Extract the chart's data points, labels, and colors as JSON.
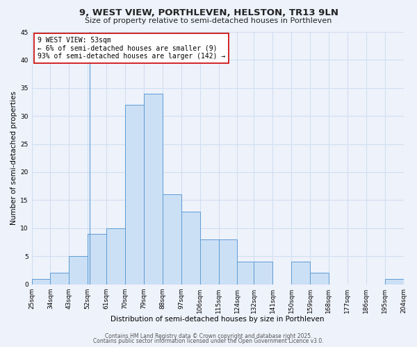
{
  "title": "9, WEST VIEW, PORTHLEVEN, HELSTON, TR13 9LN",
  "subtitle": "Size of property relative to semi-detached houses in Porthleven",
  "xlabel": "Distribution of semi-detached houses by size in Porthleven",
  "ylabel": "Number of semi-detached properties",
  "bin_labels": [
    "25sqm",
    "34sqm",
    "43sqm",
    "52sqm",
    "61sqm",
    "70sqm",
    "79sqm",
    "88sqm",
    "97sqm",
    "106sqm",
    "115sqm",
    "124sqm",
    "132sqm",
    "141sqm",
    "150sqm",
    "159sqm",
    "168sqm",
    "177sqm",
    "186sqm",
    "195sqm",
    "204sqm"
  ],
  "bin_edges": [
    25,
    34,
    43,
    52,
    61,
    70,
    79,
    88,
    97,
    106,
    115,
    124,
    132,
    141,
    150,
    159,
    168,
    177,
    186,
    195,
    204
  ],
  "counts": [
    1,
    2,
    5,
    9,
    10,
    32,
    34,
    16,
    13,
    8,
    8,
    4,
    4,
    0,
    4,
    2,
    0,
    0,
    0,
    1
  ],
  "bar_facecolor": "#cce0f5",
  "bar_edgecolor": "#5b9bd5",
  "grid_color": "#d0dff0",
  "background_color": "#eef2fb",
  "annotation_box_text": "9 WEST VIEW: 53sqm\n← 6% of semi-detached houses are smaller (9)\n93% of semi-detached houses are larger (142) →",
  "annotation_box_edgecolor": "#cc0000",
  "annotation_box_facecolor": "white",
  "vline_x": 53,
  "ylim": [
    0,
    45
  ],
  "yticks": [
    0,
    5,
    10,
    15,
    20,
    25,
    30,
    35,
    40,
    45
  ],
  "footer_line1": "Contains HM Land Registry data © Crown copyright and database right 2025.",
  "footer_line2": "Contains public sector information licensed under the Open Government Licence v3.0.",
  "title_fontsize": 9.5,
  "subtitle_fontsize": 8,
  "axis_label_fontsize": 7.5,
  "tick_fontsize": 6.5,
  "annotation_fontsize": 7,
  "footer_fontsize": 5.5
}
